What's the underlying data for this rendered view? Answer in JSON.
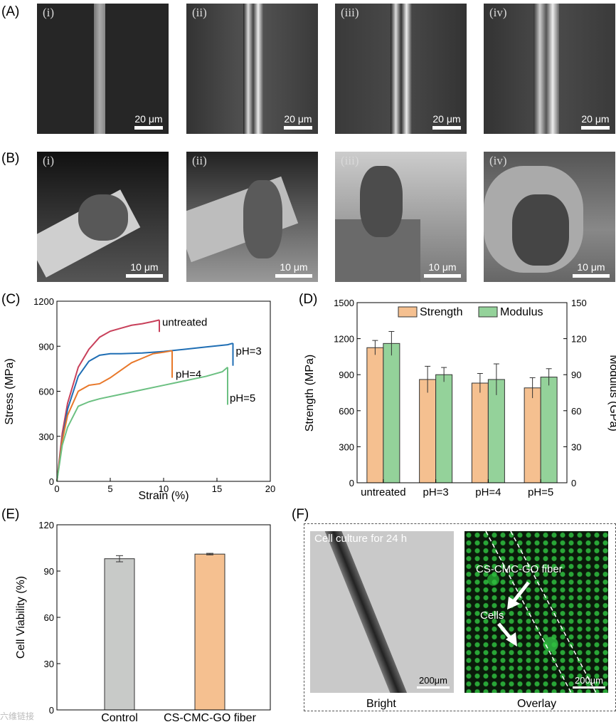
{
  "panels": {
    "A": "(A)",
    "B": "(B)",
    "C": "(C)",
    "D": "(D)",
    "E": "(E)",
    "F": "(F)"
  },
  "sem_a": [
    {
      "roman": "(i)",
      "scale": "20 μm"
    },
    {
      "roman": "(ii)",
      "scale": "20 μm"
    },
    {
      "roman": "(iii)",
      "scale": "20 μm"
    },
    {
      "roman": "(iv)",
      "scale": "20 μm"
    }
  ],
  "sem_b": [
    {
      "roman": "(i)",
      "scale": "10 μm"
    },
    {
      "roman": "(ii)",
      "scale": "10 μm"
    },
    {
      "roman": "(iii)",
      "scale": "10 μm"
    },
    {
      "roman": "(iv)",
      "scale": "10 μm"
    }
  ],
  "chart_data": [
    {
      "type": "line",
      "xlabel": "Strain (%)",
      "ylabel": "Stress (MPa)",
      "xlim": [
        0,
        20
      ],
      "ylim": [
        0,
        1200
      ],
      "xticks": [
        "0",
        "5",
        "10",
        "15",
        "20"
      ],
      "yticks": [
        "0",
        "300",
        "600",
        "900",
        "1200"
      ],
      "series": [
        {
          "name": "untreated",
          "color": "#c8405a",
          "x": [
            0,
            0.5,
            1,
            2,
            3,
            4,
            5,
            6,
            7,
            8,
            9,
            9.6
          ],
          "y": [
            0,
            320,
            520,
            760,
            880,
            960,
            1000,
            1020,
            1040,
            1050,
            1065,
            1075
          ]
        },
        {
          "name": "pH=3",
          "color": "#1f6eb4",
          "x": [
            0,
            0.5,
            1,
            2,
            3,
            4,
            5,
            6,
            8,
            10,
            12,
            14,
            16,
            16.5
          ],
          "y": [
            0,
            280,
            480,
            700,
            800,
            840,
            850,
            850,
            855,
            865,
            880,
            895,
            910,
            920
          ]
        },
        {
          "name": "pH=4",
          "color": "#e8782a",
          "x": [
            0,
            0.5,
            1,
            2,
            3,
            4,
            5,
            6,
            7,
            8,
            9,
            10,
            10.8
          ],
          "y": [
            0,
            270,
            440,
            600,
            640,
            650,
            690,
            740,
            790,
            820,
            850,
            860,
            870
          ]
        },
        {
          "name": "pH=5",
          "color": "#6cc082",
          "x": [
            0,
            0.5,
            1,
            2,
            3,
            4,
            6,
            8,
            10,
            12,
            14,
            15.5,
            16
          ],
          "y": [
            0,
            240,
            360,
            500,
            530,
            550,
            580,
            610,
            640,
            670,
            700,
            730,
            760
          ]
        }
      ]
    },
    {
      "type": "bar",
      "categories": [
        "untreated",
        "pH=3",
        "pH=4",
        "pH=5"
      ],
      "series": [
        {
          "name": "Strength",
          "axis": "left",
          "color": "#f5c090",
          "values": [
            1125,
            860,
            830,
            790
          ],
          "errors": [
            60,
            110,
            80,
            85
          ]
        },
        {
          "name": "Modulus",
          "axis": "right",
          "color": "#94d29a",
          "values": [
            116,
            90,
            86,
            88
          ],
          "errors": [
            10,
            6,
            13,
            7
          ]
        }
      ],
      "ylabel": "Strength (MPa)",
      "y2label": "Modulus (GPa)",
      "ylim": [
        0,
        1500
      ],
      "y2lim": [
        0,
        150
      ],
      "yticks": [
        "0",
        "300",
        "600",
        "900",
        "1200",
        "1500"
      ],
      "y2ticks": [
        "0",
        "30",
        "60",
        "90",
        "120",
        "150"
      ]
    },
    {
      "type": "bar",
      "categories": [
        "Control",
        "CS-CMC-GO fiber"
      ],
      "values": [
        98,
        101
      ],
      "errors": [
        2,
        0.5
      ],
      "colors": [
        "#c8cac8",
        "#f5c090"
      ],
      "ylabel": "Cell Viability (%)",
      "ylim": [
        0,
        120
      ],
      "yticks": [
        "0",
        "30",
        "60",
        "90",
        "120"
      ]
    }
  ],
  "panel_f": {
    "bright_title": "Cell culture for 24 h",
    "bright_label": "Bright",
    "overlay_label": "Overlay",
    "fiber_label": "CS-CMC-GO fiber",
    "cells_label": "Cells",
    "scale": "200μm"
  },
  "watermark": "六维链接"
}
